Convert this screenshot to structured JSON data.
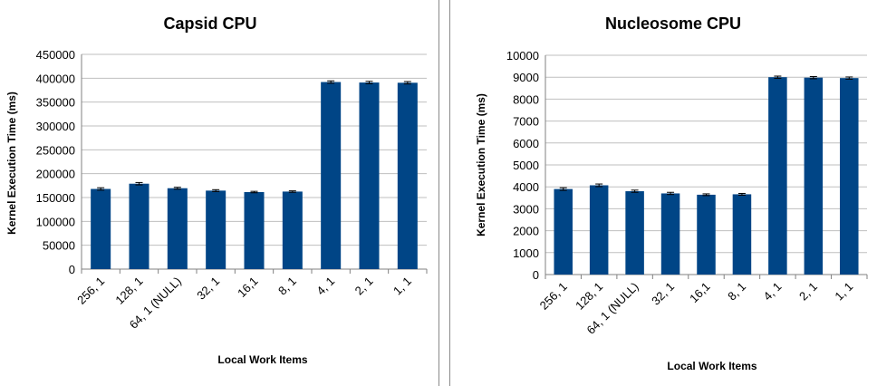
{
  "colors": {
    "bar": "#004586",
    "grid": "#bfbfbf",
    "axis": "#808080",
    "error_bar": "#000000"
  },
  "chart_data": [
    {
      "type": "bar",
      "title": "Capsid CPU",
      "xlabel": "Local Work Items",
      "ylabel": "Kernel Execution Time (ms)",
      "categories": [
        "256, 1",
        "128, 1",
        "64, 1 (NULL)",
        "32, 1",
        "16,1",
        "8, 1",
        "4, 1",
        "2, 1",
        "1, 1"
      ],
      "values": [
        168000,
        179000,
        169500,
        164500,
        161500,
        162500,
        392000,
        391000,
        390500
      ],
      "error": [
        2500,
        2500,
        2000,
        2000,
        1500,
        1500,
        2500,
        2500,
        2500
      ],
      "ylim": [
        0,
        450000
      ],
      "yticks": [
        "450000",
        "400000",
        "350000",
        "300000",
        "250000",
        "200000",
        "150000",
        "100000",
        "50000",
        "0"
      ],
      "grid": true
    },
    {
      "type": "bar",
      "title": "Nucleosome CPU",
      "xlabel": "Local Work Items",
      "ylabel": "Kernel Execution Time (ms)",
      "categories": [
        "256, 1",
        "128, 1",
        "64, 1 (NULL)",
        "32, 1",
        "16,1",
        "8, 1",
        "4, 1",
        "2, 1",
        "1, 1"
      ],
      "values": [
        3900,
        4070,
        3800,
        3700,
        3640,
        3660,
        9000,
        8980,
        8960
      ],
      "error": [
        60,
        60,
        50,
        50,
        40,
        40,
        50,
        50,
        50
      ],
      "ylim": [
        0,
        10000
      ],
      "yticks": [
        "10000",
        "9000",
        "8000",
        "7000",
        "6000",
        "5000",
        "4000",
        "3000",
        "2000",
        "1000",
        "0"
      ],
      "grid": true
    }
  ]
}
